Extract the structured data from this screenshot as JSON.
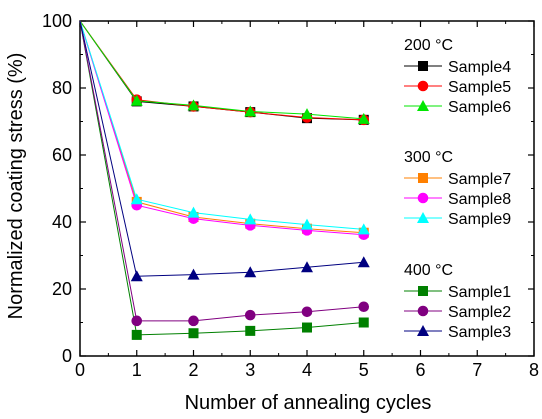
{
  "chart_data": {
    "type": "line",
    "title": "",
    "xlabel": "Number of annealing cycles",
    "ylabel": "Normalized coating stress (%)",
    "xlim": [
      0,
      8
    ],
    "ylim": [
      0,
      100
    ],
    "xticks": [
      "0",
      "1",
      "2",
      "3",
      "4",
      "5",
      "6",
      "7",
      "8"
    ],
    "yticks": [
      "0",
      "20",
      "40",
      "60",
      "80",
      "100"
    ],
    "grid": false,
    "legend_position": "right",
    "x": [
      0,
      1,
      2,
      3,
      4,
      5
    ],
    "groups": [
      {
        "title": "200 °C",
        "series": [
          {
            "name": "Sample4",
            "color": "#000000",
            "marker": "square",
            "values": [
              100,
              76.0,
              74.5,
              72.8,
              71.0,
              70.5
            ]
          },
          {
            "name": "Sample5",
            "color": "#ff0000",
            "marker": "circle",
            "values": [
              100,
              76.5,
              74.5,
              72.8,
              71.2,
              70.5
            ]
          },
          {
            "name": "Sample6",
            "color": "#00e600",
            "marker": "triangle",
            "values": [
              100,
              76.2,
              74.8,
              73.0,
              72.2,
              70.8
            ]
          }
        ]
      },
      {
        "title": "300 °C",
        "series": [
          {
            "name": "Sample7",
            "color": "#ff8000",
            "marker": "square",
            "values": [
              100,
              46.0,
              41.5,
              39.5,
              38.0,
              36.8
            ]
          },
          {
            "name": "Sample8",
            "color": "#ff00ff",
            "marker": "circle",
            "values": [
              100,
              45.0,
              41.0,
              39.0,
              37.5,
              36.2
            ]
          },
          {
            "name": "Sample9",
            "color": "#00ffff",
            "marker": "triangle",
            "values": [
              100,
              46.8,
              42.8,
              40.8,
              39.2,
              37.8
            ]
          }
        ]
      },
      {
        "title": "400 °C",
        "series": [
          {
            "name": "Sample1",
            "color": "#008000",
            "marker": "square",
            "values": [
              100,
              6.3,
              6.8,
              7.5,
              8.5,
              10.0
            ]
          },
          {
            "name": "Sample2",
            "color": "#800080",
            "marker": "circle",
            "values": [
              100,
              10.5,
              10.5,
              12.2,
              13.2,
              14.7
            ]
          },
          {
            "name": "Sample3",
            "color": "#000080",
            "marker": "triangle",
            "values": [
              100,
              23.8,
              24.3,
              25.0,
              26.5,
              28.0
            ]
          }
        ]
      }
    ]
  }
}
